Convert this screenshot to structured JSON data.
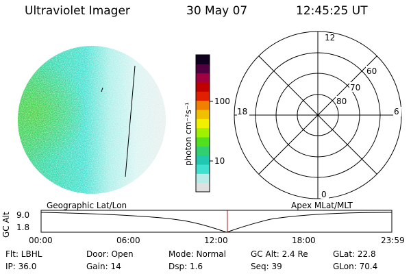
{
  "header": {
    "instrument": "Ultraviolet Imager",
    "date": "30 May 07",
    "time": "12:45:25 UT"
  },
  "colorbar": {
    "label": "photon cm⁻²s⁻¹",
    "ticks": [
      "100",
      "10"
    ],
    "colors": [
      "#e0e0e0",
      "#b8ece8",
      "#40e0d0",
      "#20c8b0",
      "#30d070",
      "#50e020",
      "#a0f000",
      "#f0f000",
      "#f0c000",
      "#f08000",
      "#e02000",
      "#c00000",
      "#a00040",
      "#500040",
      "#100020"
    ]
  },
  "polar_grid": {
    "mlt_labels": [
      "12",
      "18",
      "6",
      "0"
    ],
    "lat_labels": [
      "60",
      "70",
      "80"
    ]
  },
  "timeline": {
    "y_axis_label": "GC Alt",
    "y_ticks": [
      "9.0",
      "1.8"
    ],
    "left_caption": "Geographic Lat/Lon",
    "right_caption": "Apex  MLat/MLT",
    "x_ticks": [
      "00:00",
      "06:00",
      "12:00",
      "18:00",
      "23:59"
    ],
    "current_time_fraction": 0.531,
    "marker_color": "#c00000"
  },
  "info": {
    "filter": "Flt: LBHL",
    "ip": "IP: 36.0",
    "door": "Door: Open",
    "gain": "Gain: 14",
    "mode": "Mode: Normal",
    "dsp": "Dsp:    1.6",
    "gc_alt": "GC Alt: 2.4 Re",
    "seq": "Seq: 39",
    "glat": "GLat:  22.8",
    "glon": "GLon:  70.4"
  }
}
